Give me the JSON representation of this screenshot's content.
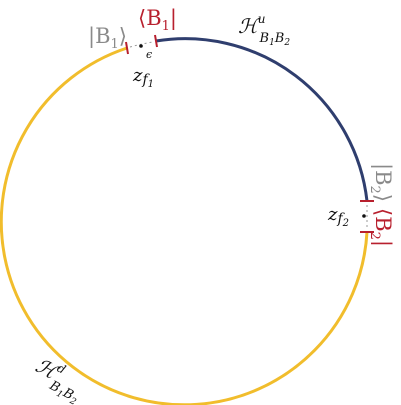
{
  "colors": {
    "upper_arc": "#2f3e6e",
    "lower_arc": "#f1bd2c",
    "red": "#b8202e",
    "gray": "#8a8a8a",
    "ink": "#111111"
  },
  "labels": {
    "ket_b1": "|B",
    "ket_b1_sub": "1",
    "ket_b1_close": "⟩",
    "bra_b1_open": "⟨B",
    "bra_b1_sub": "1",
    "bra_b1_close": "|",
    "ket_b2": "|B",
    "ket_b2_sub": "2",
    "ket_b2_close": "⟩",
    "bra_b2_open": "⟨B",
    "bra_b2_sub": "2",
    "bra_b2_close": "|",
    "z_f1": "z",
    "z_f1_sub": "f",
    "z_f1_subsub": "1",
    "z_f2": "z",
    "z_f2_sub": "f",
    "z_f2_subsub": "2",
    "epsilon": "ϵ",
    "h_upper": "ℋ",
    "h_upper_sup": "u",
    "h_upper_sub": "B",
    "h_upper_sub1": "1",
    "h_upper_sub2": "B",
    "h_upper_sub3": "2",
    "h_lower": "ℋ",
    "h_lower_sup": "d",
    "h_lower_sub": "B",
    "h_lower_sub1": "1",
    "h_lower_sub2": "B",
    "h_lower_sub3": "2"
  }
}
